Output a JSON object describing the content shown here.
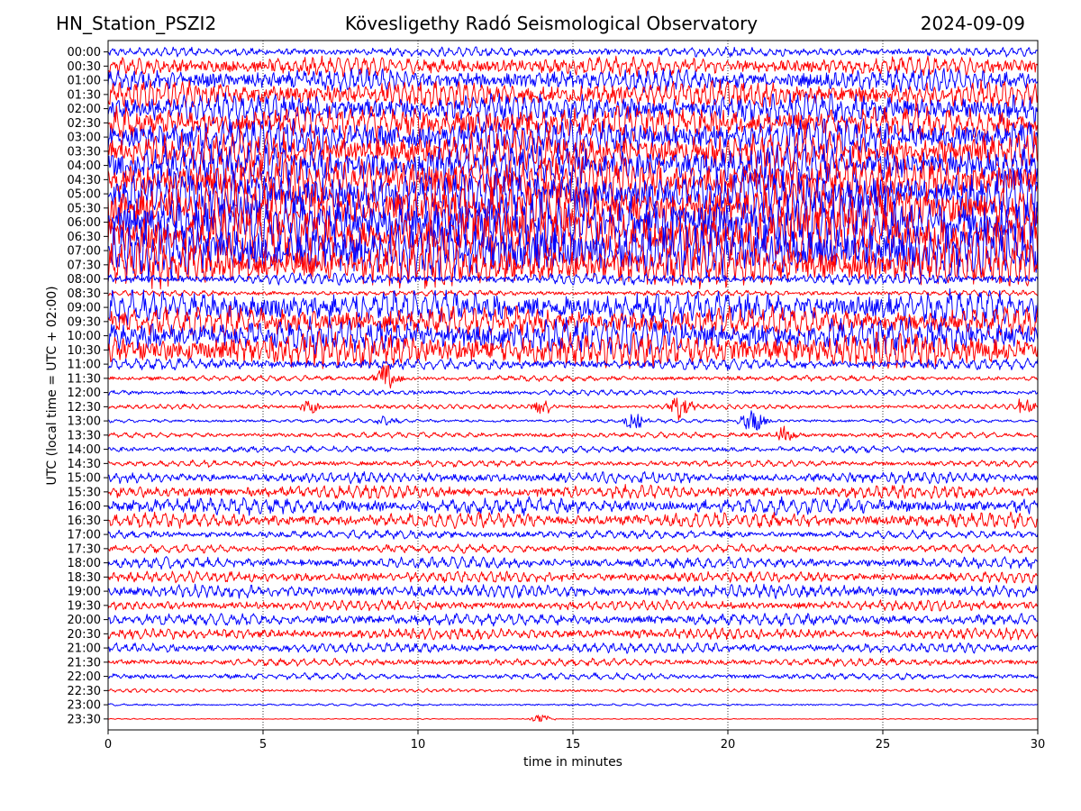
{
  "title": {
    "left": "HN_Station_PSZI2",
    "center": "Kövesligethy Radó Seismological Observatory",
    "right": "2024-09-09"
  },
  "colors": {
    "trace_even": "#0000ff",
    "trace_odd": "#ff0000",
    "grid": "#000000",
    "axes": "#000000"
  },
  "chart_data": {
    "type": "line",
    "subtype": "helicorder",
    "xlabel": "time in minutes",
    "ylabel": "UTC (local time = UTC + 02:00)",
    "xlim": [
      0,
      30
    ],
    "x_ticks": [
      "0",
      "5",
      "10",
      "15",
      "20",
      "25",
      "30"
    ],
    "grid": "vertical dotted at x ticks",
    "rows": [
      "00:00",
      "00:30",
      "01:00",
      "01:30",
      "02:00",
      "02:30",
      "03:00",
      "03:30",
      "04:00",
      "04:30",
      "05:00",
      "05:30",
      "06:00",
      "06:30",
      "07:00",
      "07:30",
      "08:00",
      "08:30",
      "09:00",
      "09:30",
      "10:00",
      "10:30",
      "11:00",
      "11:30",
      "12:00",
      "12:30",
      "13:00",
      "13:30",
      "14:00",
      "14:30",
      "15:00",
      "15:30",
      "16:00",
      "16:30",
      "17:00",
      "17:30",
      "18:00",
      "18:30",
      "19:00",
      "19:30",
      "20:00",
      "20:30",
      "21:00",
      "21:30",
      "22:00",
      "22:30",
      "23:00",
      "23:30"
    ],
    "row_amplitude": [
      0.5,
      1.0,
      1.2,
      1.4,
      1.6,
      1.8,
      2.0,
      2.1,
      2.2,
      2.4,
      2.6,
      2.8,
      3.0,
      3.0,
      3.0,
      2.4,
      0.6,
      0.3,
      1.8,
      1.6,
      1.9,
      1.8,
      0.6,
      0.3,
      0.3,
      0.25,
      0.2,
      0.3,
      0.35,
      0.35,
      0.6,
      0.7,
      0.9,
      0.8,
      0.45,
      0.45,
      0.6,
      0.6,
      0.7,
      0.55,
      0.65,
      0.6,
      0.55,
      0.4,
      0.35,
      0.2,
      0.12,
      0.05
    ],
    "bursts": [
      {
        "row": "11:30",
        "minute": 9.0,
        "amplitude": 0.9
      },
      {
        "row": "12:30",
        "minute": 6.5,
        "amplitude": 0.4
      },
      {
        "row": "12:30",
        "minute": 14.0,
        "amplitude": 0.4
      },
      {
        "row": "12:30",
        "minute": 18.5,
        "amplitude": 0.9
      },
      {
        "row": "12:30",
        "minute": 29.5,
        "amplitude": 0.4
      },
      {
        "row": "13:00",
        "minute": 9.0,
        "amplitude": 0.3
      },
      {
        "row": "13:00",
        "minute": 17.0,
        "amplitude": 0.45
      },
      {
        "row": "13:00",
        "minute": 20.8,
        "amplitude": 0.7
      },
      {
        "row": "13:30",
        "minute": 21.8,
        "amplitude": 0.5
      },
      {
        "row": "23:30",
        "minute": 14.0,
        "amplitude": 0.25
      }
    ]
  }
}
